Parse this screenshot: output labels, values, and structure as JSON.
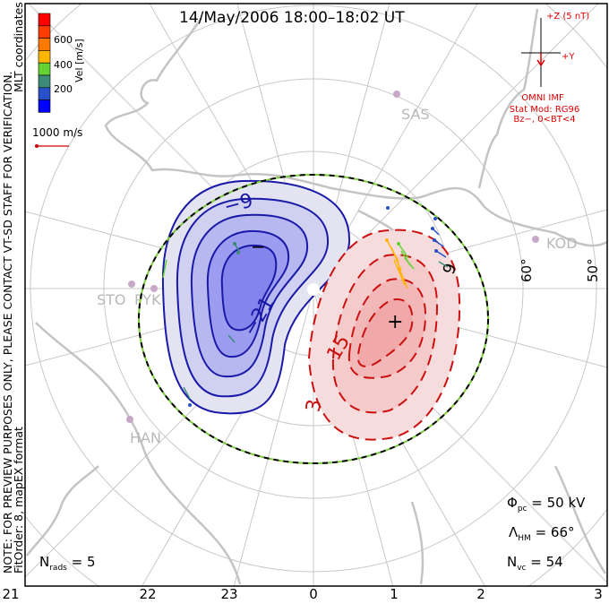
{
  "title": "14/May/2006 18:00–18:02 UT",
  "side_notes": {
    "note": "NOTE: FOR PREVIEW PURPOSES ONLY, PLEASE CONTACT VT-SD STAFF FOR VERIFICATION.",
    "fit": "FitOrder: 8, mapEX format",
    "coords": "MLT coordinates"
  },
  "colorbar": {
    "label": "Vel [m/s]",
    "ticks": [
      "600",
      "400",
      "200"
    ],
    "colors": [
      "#ff0000",
      "#ff3c00",
      "#ff7800",
      "#ffb400",
      "#64d232",
      "#3c8c78",
      "#2850c8",
      "#0000ff"
    ]
  },
  "velocity_scale": {
    "label": "1000 m/s",
    "color": "#cc0000"
  },
  "imf": {
    "z_label": "+Z (5 nT)",
    "y_label": "+Y",
    "source": "OMNI IMF",
    "model": "Stat Mod: RG96",
    "condition": "Bz−, 0<BT<4",
    "color": "#dd0000"
  },
  "radars": [
    "SAS",
    "KOD",
    "STO",
    "PYK",
    "HAN"
  ],
  "latitude_labels": [
    "60°",
    "50°"
  ],
  "contour_labels": {
    "neg_outer": "−9",
    "neg_inner": "−21",
    "pos_inner": "15",
    "pos_outer": "3",
    "pos_side": "9"
  },
  "markers": {
    "min": "−",
    "max": "+"
  },
  "stats": {
    "nrads_sym": "N",
    "nrads_sub": "rads",
    "nrads_val": "= 5",
    "phi_sym": "Φ",
    "phi_sub": "pc",
    "phi_val": "= 50 kV",
    "lam_sym": "Λ",
    "lam_sub": "HM",
    "lam_val": "= 66°",
    "nvc_sym": "N",
    "nvc_sub": "vc",
    "nvc_val": "= 54"
  },
  "mlt_labels": [
    "21",
    "22",
    "23",
    "0",
    "1",
    "2",
    "3"
  ],
  "colors": {
    "negative": "#1a1aa8",
    "positive": "#cc1010",
    "boundary_green": "#7ccc3c",
    "grid": "#c8c8c8"
  }
}
